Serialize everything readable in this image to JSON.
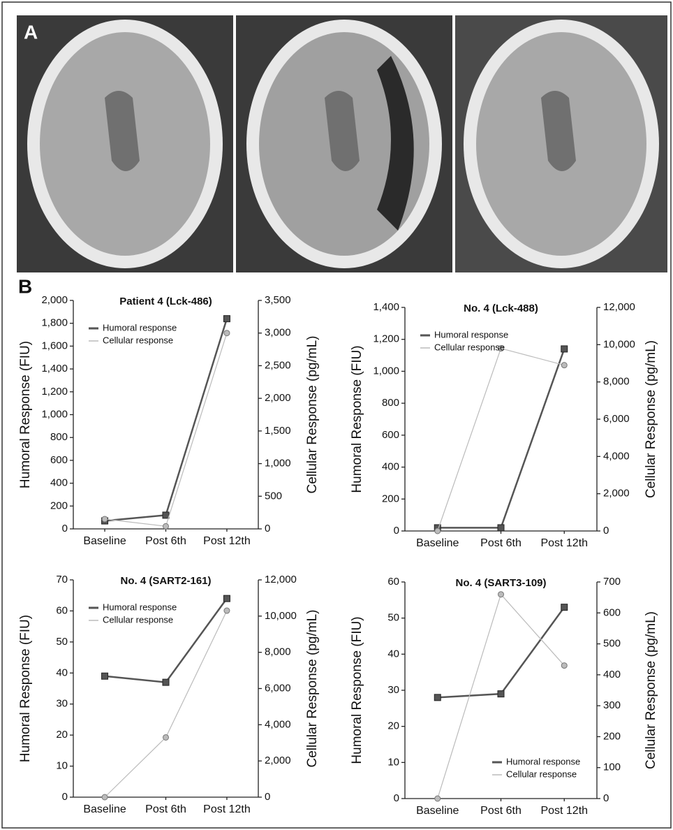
{
  "panels": {
    "a": "A",
    "b": "B"
  },
  "chart_data": [
    {
      "type": "line",
      "title": "Patient 4 (Lck-486)",
      "categories": [
        "Baseline",
        "Post 6th",
        "Post 12th"
      ],
      "ylabel": "Humoral Response (FIU)",
      "y2label": "Cellular Response (pg/mL)",
      "ylim": [
        0,
        2000
      ],
      "yticks": [
        0,
        200,
        400,
        600,
        800,
        {
          "value": 1000,
          "label": "1,000"
        },
        {
          "value": 1200,
          "label": "1,200"
        },
        {
          "value": 1400,
          "label": "1,400"
        },
        {
          "value": 1600,
          "label": "1,600"
        },
        {
          "value": 1800,
          "label": "1,800"
        },
        {
          "value": 2000,
          "label": "2,000"
        }
      ],
      "y2lim": [
        0,
        3500
      ],
      "y2ticks": [
        0,
        500,
        {
          "value": 1000,
          "label": "1,000"
        },
        {
          "value": 1500,
          "label": "1,500"
        },
        {
          "value": 2000,
          "label": "2,000"
        },
        {
          "value": 2500,
          "label": "2,500"
        },
        {
          "value": 3000,
          "label": "3,000"
        },
        {
          "value": 3500,
          "label": "3,500"
        }
      ],
      "legend": "upper left",
      "series": [
        {
          "name": "Humoral response",
          "color": "#555555",
          "values": [
            70,
            120,
            1840
          ]
        },
        {
          "name": "Cellular response",
          "color": "#bbbbbb",
          "axis": "y2",
          "values": [
            150,
            40,
            3000
          ]
        }
      ]
    },
    {
      "type": "line",
      "title": "No. 4 (Lck-488)",
      "categories": [
        "Baseline",
        "Post 6th",
        "Post 12th"
      ],
      "ylabel": "Humoral Response (FIU)",
      "y2label": "Cellular Response (pg/mL)",
      "ylim": [
        0,
        1400
      ],
      "yticks": [
        0,
        200,
        400,
        600,
        800,
        {
          "value": 1000,
          "label": "1,000"
        },
        {
          "value": 1200,
          "label": "1,200"
        },
        {
          "value": 1400,
          "label": "1,400"
        }
      ],
      "y2lim": [
        0,
        12000
      ],
      "y2ticks": [
        0,
        {
          "value": 2000,
          "label": "2,000"
        },
        {
          "value": 4000,
          "label": "4,000"
        },
        {
          "value": 6000,
          "label": "6,000"
        },
        {
          "value": 8000,
          "label": "8,000"
        },
        {
          "value": 10000,
          "label": "10,000"
        },
        {
          "value": 12000,
          "label": "12,000"
        }
      ],
      "legend": "upper left",
      "series": [
        {
          "name": "Humoral response",
          "color": "#555555",
          "values": [
            20,
            20,
            1140
          ]
        },
        {
          "name": "Cellular response",
          "color": "#bbbbbb",
          "axis": "y2",
          "values": [
            0,
            9800,
            8900
          ]
        }
      ]
    },
    {
      "type": "line",
      "title": "No. 4 (SART2-161)",
      "categories": [
        "Baseline",
        "Post 6th",
        "Post 12th"
      ],
      "ylabel": "Humoral Response (FIU)",
      "y2label": "Cellular Response (pg/mL)",
      "ylim": [
        0,
        70
      ],
      "yticks": [
        0,
        10,
        20,
        30,
        40,
        50,
        60,
        70
      ],
      "y2lim": [
        0,
        12000
      ],
      "y2ticks": [
        0,
        {
          "value": 2000,
          "label": "2,000"
        },
        {
          "value": 4000,
          "label": "4,000"
        },
        {
          "value": 6000,
          "label": "6,000"
        },
        {
          "value": 8000,
          "label": "8,000"
        },
        {
          "value": 10000,
          "label": "10,000"
        },
        {
          "value": 12000,
          "label": "12,000"
        }
      ],
      "legend": "upper left",
      "series": [
        {
          "name": "Humoral response",
          "color": "#555555",
          "values": [
            39,
            37,
            64
          ]
        },
        {
          "name": "Cellular response",
          "color": "#bbbbbb",
          "axis": "y2",
          "values": [
            0,
            3300,
            10300
          ]
        }
      ]
    },
    {
      "type": "line",
      "title": "No. 4 (SART3-109)",
      "categories": [
        "Baseline",
        "Post 6th",
        "Post 12th"
      ],
      "ylabel": "Humoral Response (FIU)",
      "y2label": "Cellular Response (pg/mL)",
      "ylim": [
        0,
        60
      ],
      "yticks": [
        0,
        10,
        20,
        30,
        40,
        50,
        60
      ],
      "y2lim": [
        0,
        700
      ],
      "y2ticks": [
        0,
        100,
        200,
        300,
        400,
        500,
        600,
        700
      ],
      "legend": "lower right",
      "series": [
        {
          "name": "Humoral response",
          "color": "#555555",
          "values": [
            28,
            29,
            53
          ]
        },
        {
          "name": "Cellular response",
          "color": "#bbbbbb",
          "axis": "y2",
          "values": [
            0,
            660,
            430
          ]
        }
      ]
    }
  ]
}
